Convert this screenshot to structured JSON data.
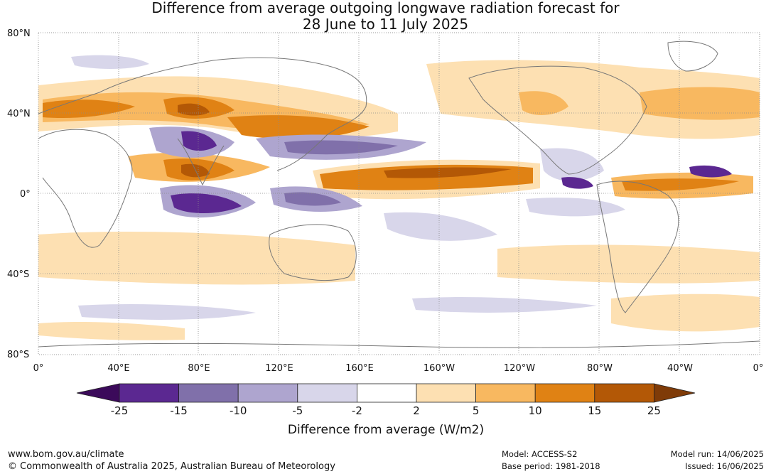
{
  "title": {
    "line1": "Difference from average outgoing longwave radiation forecast for",
    "line2": "28 June to 11 July 2025"
  },
  "axes": {
    "lat_labels": [
      "80°N",
      "40°N",
      "0°",
      "40°S",
      "80°S"
    ],
    "lon_labels": [
      "0°",
      "40°E",
      "80°E",
      "120°E",
      "160°E",
      "160°W",
      "120°W",
      "80°W",
      "40°W",
      "0°"
    ]
  },
  "colorbar": {
    "tick_labels": [
      "-25",
      "-15",
      "-10",
      "-5",
      "-2",
      "2",
      "5",
      "10",
      "15",
      "25"
    ],
    "colors": [
      "#3b0a5a",
      "#5b2891",
      "#8070aa",
      "#aea5cf",
      "#d8d6ea",
      "#ffffff",
      "#fde0b2",
      "#f8b860",
      "#e08214",
      "#b35806",
      "#7f3b08"
    ],
    "label": "Difference from average (W/m2)"
  },
  "footer": {
    "url": "www.bom.gov.au/climate",
    "copyright": "© Commonwealth of Australia 2025, Australian Bureau of Meteorology",
    "model": "Model: ACCESS-S2",
    "base_period": "Base period: 1981-2018",
    "model_run": "Model run: 14/06/2025",
    "issued": "Issued: 16/06/2025"
  }
}
